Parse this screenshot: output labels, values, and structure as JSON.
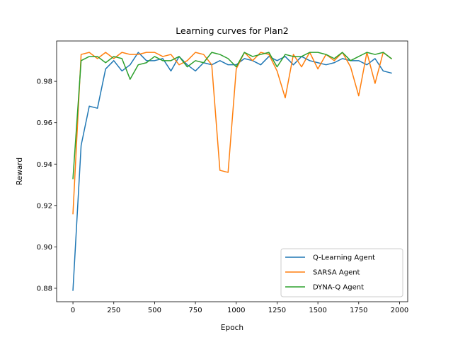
{
  "chart_data": {
    "type": "line",
    "title": "Learning curves for Plan2",
    "xlabel": "Epoch",
    "ylabel": "Reward",
    "xlim": [
      -100,
      2050
    ],
    "ylim": [
      0.8735,
      0.9995
    ],
    "xticks": [
      0,
      250,
      500,
      750,
      1000,
      1250,
      1500,
      1750,
      2000
    ],
    "yticks": [
      0.88,
      0.9,
      0.92,
      0.94,
      0.96,
      0.98
    ],
    "xtick_labels": [
      "0",
      "250",
      "500",
      "750",
      "1000",
      "1250",
      "1500",
      "1750",
      "2000"
    ],
    "ytick_labels": [
      "0.88",
      "0.90",
      "0.92",
      "0.94",
      "0.96",
      "0.98"
    ],
    "grid": false,
    "legend_position": "lower-right",
    "x": [
      0,
      50,
      100,
      150,
      200,
      250,
      300,
      350,
      400,
      450,
      500,
      550,
      600,
      650,
      700,
      750,
      800,
      850,
      900,
      950,
      1000,
      1050,
      1100,
      1150,
      1200,
      1250,
      1300,
      1350,
      1400,
      1450,
      1500,
      1550,
      1600,
      1650,
      1700,
      1750,
      1800,
      1850,
      1900,
      1950
    ],
    "series": [
      {
        "name": "Q-Learning Agent",
        "color": "#1f77b4",
        "values": [
          0.879,
          0.949,
          0.968,
          0.967,
          0.986,
          0.99,
          0.985,
          0.988,
          0.994,
          0.99,
          0.99,
          0.991,
          0.985,
          0.992,
          0.988,
          0.985,
          0.989,
          0.988,
          0.99,
          0.988,
          0.988,
          0.991,
          0.99,
          0.988,
          0.992,
          0.99,
          0.992,
          0.988,
          0.992,
          0.99,
          0.989,
          0.988,
          0.989,
          0.991,
          0.99,
          0.99,
          0.988,
          0.991,
          0.985,
          0.984
        ]
      },
      {
        "name": "SARSA Agent",
        "color": "#ff7f0e",
        "values": [
          0.916,
          0.993,
          0.994,
          0.991,
          0.994,
          0.991,
          0.994,
          0.993,
          0.993,
          0.994,
          0.994,
          0.992,
          0.993,
          0.988,
          0.99,
          0.994,
          0.993,
          0.988,
          0.937,
          0.936,
          0.986,
          0.994,
          0.99,
          0.994,
          0.993,
          0.985,
          0.972,
          0.993,
          0.987,
          0.994,
          0.986,
          0.993,
          0.99,
          0.994,
          0.987,
          0.973,
          0.994,
          0.979,
          0.994,
          0.991
        ]
      },
      {
        "name": "DYNA-Q Agent",
        "color": "#2ca02c",
        "values": [
          0.933,
          0.99,
          0.992,
          0.992,
          0.989,
          0.992,
          0.991,
          0.981,
          0.988,
          0.989,
          0.992,
          0.99,
          0.99,
          0.992,
          0.987,
          0.99,
          0.989,
          0.994,
          0.993,
          0.991,
          0.987,
          0.994,
          0.992,
          0.993,
          0.994,
          0.987,
          0.993,
          0.992,
          0.992,
          0.994,
          0.994,
          0.993,
          0.991,
          0.994,
          0.99,
          0.992,
          0.994,
          0.993,
          0.994,
          0.991
        ]
      }
    ]
  }
}
